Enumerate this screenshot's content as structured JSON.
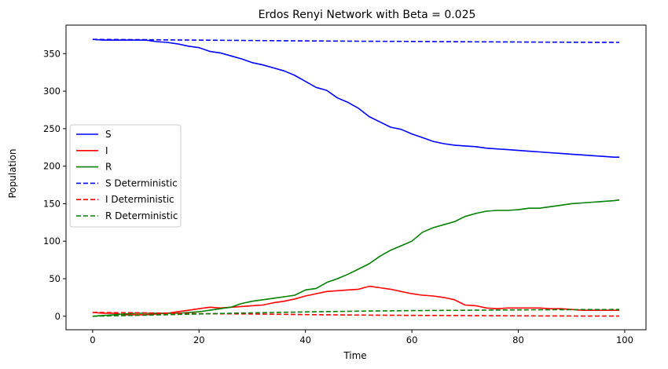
{
  "chart_data": {
    "type": "line",
    "title": "Erdos Renyi Network with Beta = 0.025",
    "xlabel": "Time",
    "ylabel": "Population",
    "xlim": [
      -5,
      104
    ],
    "ylim": [
      -18,
      388
    ],
    "xticks": [
      0,
      20,
      40,
      60,
      80,
      100
    ],
    "yticks": [
      0,
      50,
      100,
      150,
      200,
      250,
      300,
      350
    ],
    "grid": false,
    "legend_position": "center-left",
    "series": [
      {
        "name": "S",
        "color": "#0000ff",
        "dash": "solid",
        "x": [
          0,
          2,
          4,
          6,
          8,
          10,
          12,
          14,
          16,
          18,
          20,
          22,
          24,
          26,
          28,
          30,
          32,
          34,
          36,
          38,
          40,
          42,
          44,
          46,
          48,
          50,
          52,
          54,
          56,
          58,
          60,
          62,
          64,
          66,
          68,
          70,
          72,
          74,
          76,
          78,
          80,
          82,
          84,
          86,
          88,
          90,
          92,
          94,
          96,
          98,
          99
        ],
        "y": [
          369,
          368,
          368,
          368,
          368,
          368,
          366,
          365,
          363,
          360,
          358,
          353,
          351,
          347,
          343,
          338,
          335,
          331,
          327,
          321,
          313,
          305,
          301,
          291,
          285,
          277,
          266,
          259,
          252,
          249,
          243,
          238,
          233,
          230,
          228,
          227,
          226,
          224,
          223,
          222,
          221,
          220,
          219,
          218,
          217,
          216,
          215,
          214,
          213,
          212,
          212
        ]
      },
      {
        "name": "I",
        "color": "#ff0000",
        "dash": "solid",
        "x": [
          0,
          2,
          4,
          6,
          8,
          10,
          12,
          14,
          16,
          18,
          20,
          22,
          24,
          26,
          28,
          30,
          32,
          34,
          36,
          38,
          40,
          42,
          44,
          46,
          48,
          50,
          52,
          54,
          56,
          58,
          60,
          62,
          64,
          66,
          68,
          70,
          72,
          74,
          76,
          78,
          80,
          82,
          84,
          86,
          88,
          90,
          92,
          94,
          96,
          98,
          99
        ],
        "y": [
          5,
          4,
          4,
          2,
          2,
          2,
          3,
          4,
          6,
          8,
          10,
          12,
          11,
          12,
          13,
          14,
          15,
          18,
          20,
          23,
          27,
          30,
          33,
          34,
          35,
          36,
          40,
          38,
          36,
          33,
          30,
          28,
          27,
          25,
          22,
          15,
          14,
          11,
          10,
          11,
          11,
          11,
          11,
          10,
          10,
          9,
          8,
          8,
          8,
          8,
          8
        ]
      },
      {
        "name": "R",
        "color": "#008000",
        "dash": "solid",
        "x": [
          0,
          2,
          4,
          6,
          8,
          10,
          12,
          14,
          16,
          18,
          20,
          22,
          24,
          26,
          28,
          30,
          32,
          34,
          36,
          38,
          40,
          42,
          44,
          46,
          48,
          50,
          52,
          54,
          56,
          58,
          60,
          62,
          64,
          66,
          68,
          70,
          72,
          74,
          76,
          78,
          80,
          82,
          84,
          86,
          88,
          90,
          92,
          94,
          96,
          98,
          99
        ],
        "y": [
          0,
          1,
          2,
          3,
          4,
          4,
          4,
          4,
          4,
          5,
          6,
          8,
          10,
          12,
          17,
          20,
          22,
          24,
          26,
          28,
          35,
          37,
          45,
          50,
          56,
          63,
          70,
          80,
          88,
          94,
          100,
          112,
          118,
          122,
          126,
          133,
          137,
          140,
          141,
          141,
          142,
          144,
          144,
          146,
          148,
          150,
          151,
          152,
          153,
          154,
          155
        ]
      },
      {
        "name": "S Deterministic",
        "color": "#0000ff",
        "dash": "dashed",
        "x": [
          0,
          10,
          20,
          30,
          40,
          50,
          60,
          70,
          80,
          90,
          99
        ],
        "y": [
          369,
          368.5,
          368,
          367.5,
          367,
          366.6,
          366.2,
          365.8,
          365.5,
          365.2,
          365
        ]
      },
      {
        "name": "I Deterministic",
        "color": "#ff0000",
        "dash": "dashed",
        "x": [
          0,
          10,
          20,
          30,
          40,
          50,
          60,
          70,
          80,
          90,
          99
        ],
        "y": [
          5,
          4.5,
          3.5,
          3,
          2.2,
          1.6,
          1.1,
          0.8,
          0.5,
          0.3,
          0.2
        ]
      },
      {
        "name": "R Deterministic",
        "color": "#008000",
        "dash": "dashed",
        "x": [
          0,
          10,
          20,
          30,
          40,
          50,
          60,
          70,
          80,
          90,
          99
        ],
        "y": [
          0,
          1.5,
          3,
          4.5,
          5.8,
          6.8,
          7.5,
          8,
          8.5,
          8.8,
          9
        ]
      }
    ]
  }
}
